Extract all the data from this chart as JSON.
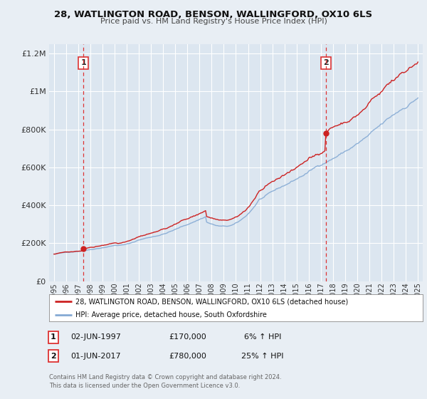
{
  "title": "28, WATLINGTON ROAD, BENSON, WALLINGFORD, OX10 6LS",
  "subtitle": "Price paid vs. HM Land Registry's House Price Index (HPI)",
  "bg_color": "#e8eef4",
  "plot_bg_color": "#dce6f0",
  "grid_color": "#ffffff",
  "red_line_color": "#cc2222",
  "blue_line_color": "#85aad4",
  "marker1_date_x": 1997.42,
  "marker1_y": 170000,
  "marker2_date_x": 2017.42,
  "marker2_y": 780000,
  "marker1_label": "1",
  "marker2_label": "2",
  "dashed_line_color": "#dd3333",
  "legend_line1": "28, WATLINGTON ROAD, BENSON, WALLINGFORD, OX10 6LS (detached house)",
  "legend_line2": "HPI: Average price, detached house, South Oxfordshire",
  "note1_label": "1",
  "note1_date": "02-JUN-1997",
  "note1_price": "£170,000",
  "note1_hpi": "6% ↑ HPI",
  "note2_label": "2",
  "note2_date": "01-JUN-2017",
  "note2_price": "£780,000",
  "note2_hpi": "25% ↑ HPI",
  "footer": "Contains HM Land Registry data © Crown copyright and database right 2024.\nThis data is licensed under the Open Government Licence v3.0.",
  "ylim": [
    0,
    1250000
  ],
  "xlim_start": 1994.6,
  "xlim_end": 2025.4,
  "yticks": [
    0,
    200000,
    400000,
    600000,
    800000,
    1000000,
    1200000
  ],
  "ytick_labels": [
    "£0",
    "£200K",
    "£400K",
    "£600K",
    "£800K",
    "£1M",
    "£1.2M"
  ]
}
